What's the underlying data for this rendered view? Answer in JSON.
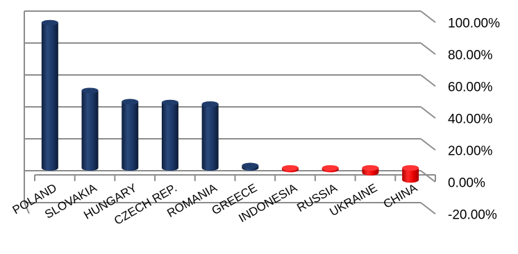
{
  "chart_data": {
    "type": "bar",
    "categories": [
      "POLAND",
      "SLOVAKIA",
      "HUNGARY",
      "CZECH REP.",
      "ROMANIA",
      "GREECE",
      "INDONESIA",
      "RUSSIA",
      "UKRAINE",
      "CHINA"
    ],
    "values": [
      91.0,
      48.5,
      41.5,
      41.0,
      40.0,
      1.5,
      -1.0,
      -1.0,
      -3.0,
      -7.5
    ],
    "title": "",
    "xlabel": "",
    "ylabel": "",
    "ylim": [
      -20,
      100
    ],
    "yticks": [
      "100.00%",
      "80.00%",
      "60.00%",
      "40.00%",
      "20.00%",
      "0.00%",
      "-20.00%"
    ],
    "grid": true,
    "style": "3d-cylinder",
    "colors": {
      "positive": "#1f3864",
      "negative": "#ff0000",
      "grid": "#8c8c8c"
    }
  }
}
